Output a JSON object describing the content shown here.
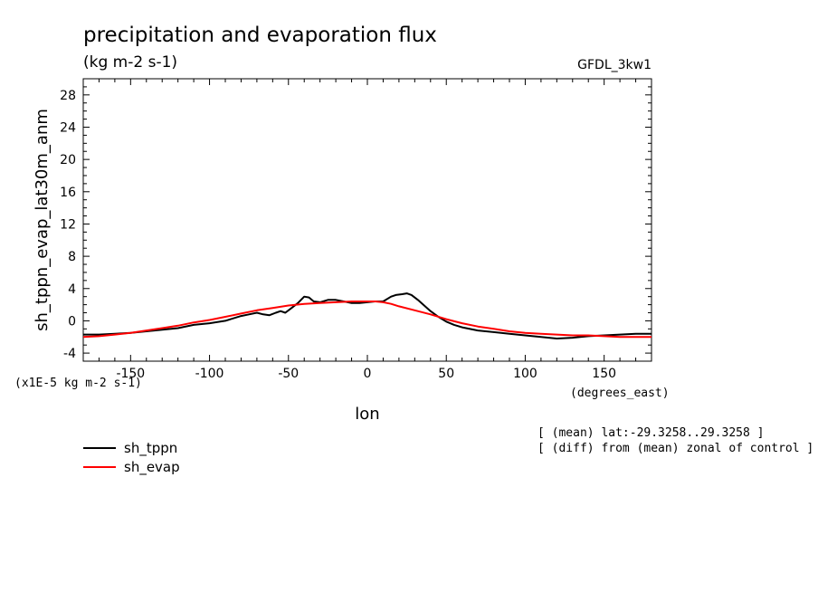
{
  "chart_data": {
    "type": "line",
    "title": "precipitation and evaporation flux",
    "subtitle": "(kg m-2 s-1)",
    "model_label": "GFDL_3kw1",
    "ylabel": "sh_tppn_evap_lat30m_anm",
    "yunits": "(x1E-5 kg m-2 s-1)",
    "xlabel": "lon",
    "xunits": "(degrees_east)",
    "xlim": [
      -180,
      180
    ],
    "ylim": [
      -5,
      30
    ],
    "xticks": [
      -150,
      -100,
      -50,
      0,
      50,
      100,
      150
    ],
    "xtick_labels": [
      "-150",
      "-100",
      "-50",
      "0",
      "50",
      "100",
      "150"
    ],
    "yticks": [
      -4,
      0,
      4,
      8,
      12,
      16,
      20,
      24,
      28
    ],
    "ytick_labels": [
      "-4",
      "0",
      "4",
      "8",
      "12",
      "16",
      "20",
      "24",
      "28"
    ],
    "notes": [
      "[ (mean) lat:-29.3258..29.3258 ]",
      "[ (diff) from (mean) zonal of control ]"
    ],
    "series": [
      {
        "name": "sh_tppn",
        "color": "#000000",
        "x": [
          -180,
          -170,
          -160,
          -150,
          -140,
          -130,
          -120,
          -110,
          -100,
          -90,
          -80,
          -75,
          -70,
          -66,
          -62,
          -58,
          -55,
          -52,
          -48,
          -44,
          -40,
          -37,
          -34,
          -30,
          -25,
          -20,
          -15,
          -10,
          -5,
          0,
          5,
          10,
          15,
          18,
          22,
          25,
          28,
          32,
          36,
          40,
          45,
          50,
          55,
          60,
          70,
          80,
          90,
          100,
          110,
          120,
          130,
          140,
          150,
          160,
          170,
          180
        ],
        "y": [
          -1.7,
          -1.7,
          -1.6,
          -1.5,
          -1.3,
          -1.1,
          -0.9,
          -0.5,
          -0.3,
          0.0,
          0.6,
          0.8,
          1.0,
          0.8,
          0.7,
          1.0,
          1.2,
          1.0,
          1.6,
          2.2,
          3.0,
          2.9,
          2.4,
          2.3,
          2.6,
          2.6,
          2.4,
          2.2,
          2.2,
          2.3,
          2.4,
          2.4,
          3.0,
          3.2,
          3.3,
          3.4,
          3.2,
          2.6,
          1.9,
          1.2,
          0.5,
          -0.1,
          -0.5,
          -0.8,
          -1.2,
          -1.4,
          -1.6,
          -1.8,
          -2.0,
          -2.2,
          -2.1,
          -1.9,
          -1.8,
          -1.7,
          -1.6,
          -1.6
        ]
      },
      {
        "name": "sh_evap",
        "color": "#ff0000",
        "x": [
          -180,
          -170,
          -160,
          -150,
          -140,
          -130,
          -120,
          -110,
          -100,
          -90,
          -80,
          -70,
          -60,
          -50,
          -40,
          -30,
          -20,
          -10,
          0,
          5,
          10,
          15,
          20,
          30,
          40,
          50,
          60,
          70,
          80,
          90,
          100,
          110,
          120,
          130,
          140,
          150,
          160,
          170,
          180
        ],
        "y": [
          -2.0,
          -1.9,
          -1.7,
          -1.5,
          -1.2,
          -0.9,
          -0.6,
          -0.2,
          0.1,
          0.5,
          0.9,
          1.3,
          1.6,
          1.9,
          2.1,
          2.2,
          2.3,
          2.4,
          2.4,
          2.4,
          2.3,
          2.1,
          1.8,
          1.3,
          0.8,
          0.2,
          -0.3,
          -0.7,
          -1.0,
          -1.3,
          -1.5,
          -1.6,
          -1.7,
          -1.8,
          -1.8,
          -1.9,
          -2.0,
          -2.0,
          -2.0
        ]
      }
    ],
    "legend_placement": "bottom-left"
  }
}
